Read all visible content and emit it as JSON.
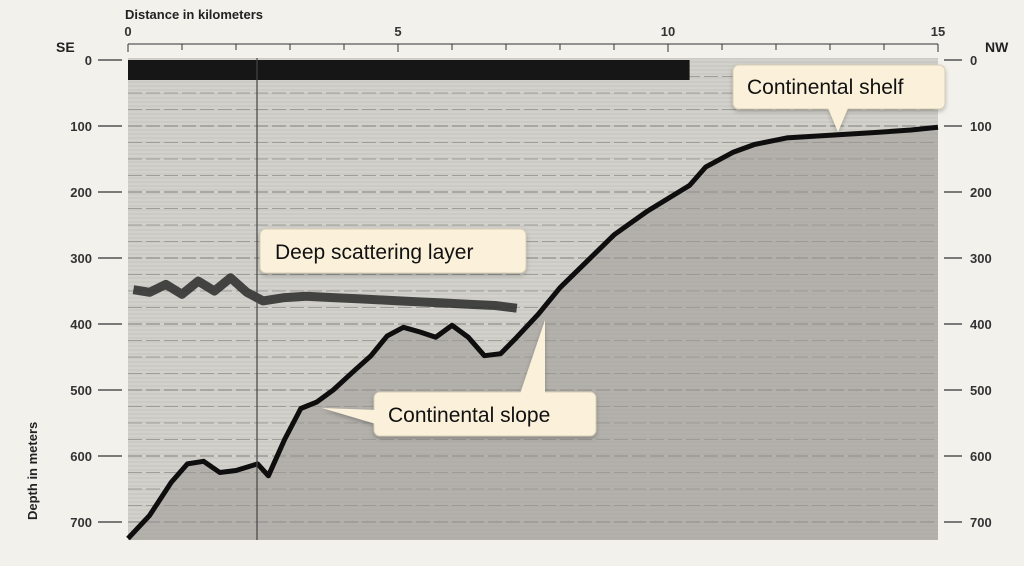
{
  "x_axis": {
    "title": "Distance in kilometers",
    "tick_labels": [
      "0",
      "5",
      "10",
      "15"
    ],
    "ticks": [
      0,
      5,
      10,
      15
    ],
    "range": [
      0,
      15
    ]
  },
  "y_axis": {
    "title": "Depth in meters",
    "tick_labels": [
      "0",
      "100",
      "200",
      "300",
      "400",
      "500",
      "600",
      "700"
    ],
    "ticks": [
      0,
      100,
      200,
      300,
      400,
      500,
      600,
      700
    ],
    "range": [
      0,
      720
    ]
  },
  "direction": {
    "left": "SE",
    "right": "NW"
  },
  "callouts": {
    "shelf": "Continental shelf",
    "scattering": "Deep scattering layer",
    "slope": "Continental slope"
  },
  "profile": {
    "seafloor": [
      [
        0,
        725
      ],
      [
        0.4,
        690
      ],
      [
        0.8,
        640
      ],
      [
        1.1,
        612
      ],
      [
        1.4,
        608
      ],
      [
        1.7,
        625
      ],
      [
        2.0,
        622
      ],
      [
        2.4,
        612
      ],
      [
        2.6,
        630
      ],
      [
        2.9,
        575
      ],
      [
        3.2,
        528
      ],
      [
        3.5,
        518
      ],
      [
        3.8,
        500
      ],
      [
        4.2,
        470
      ],
      [
        4.5,
        448
      ],
      [
        4.8,
        418
      ],
      [
        5.1,
        405
      ],
      [
        5.4,
        412
      ],
      [
        5.7,
        420
      ],
      [
        6.0,
        402
      ],
      [
        6.3,
        420
      ],
      [
        6.6,
        448
      ],
      [
        6.9,
        445
      ],
      [
        7.2,
        420
      ],
      [
        7.6,
        385
      ],
      [
        8.0,
        345
      ],
      [
        8.5,
        305
      ],
      [
        9.0,
        265
      ],
      [
        9.6,
        230
      ],
      [
        10.4,
        190
      ],
      [
        10.7,
        162
      ],
      [
        11.2,
        140
      ],
      [
        11.6,
        128
      ],
      [
        12.2,
        118
      ],
      [
        13.0,
        114
      ],
      [
        13.8,
        110
      ],
      [
        14.5,
        106
      ],
      [
        15.0,
        102
      ]
    ],
    "scattering_layer": [
      [
        0.1,
        348
      ],
      [
        0.4,
        352
      ],
      [
        0.7,
        340
      ],
      [
        1.0,
        355
      ],
      [
        1.3,
        335
      ],
      [
        1.6,
        350
      ],
      [
        1.9,
        330
      ],
      [
        2.2,
        352
      ],
      [
        2.5,
        365
      ],
      [
        2.9,
        360
      ],
      [
        3.3,
        358
      ],
      [
        3.8,
        360
      ],
      [
        4.3,
        362
      ],
      [
        4.8,
        364
      ],
      [
        5.3,
        366
      ],
      [
        5.8,
        368
      ],
      [
        6.3,
        370
      ],
      [
        6.8,
        372
      ],
      [
        7.2,
        376
      ]
    ],
    "surface_band_end_km": 10.4
  }
}
